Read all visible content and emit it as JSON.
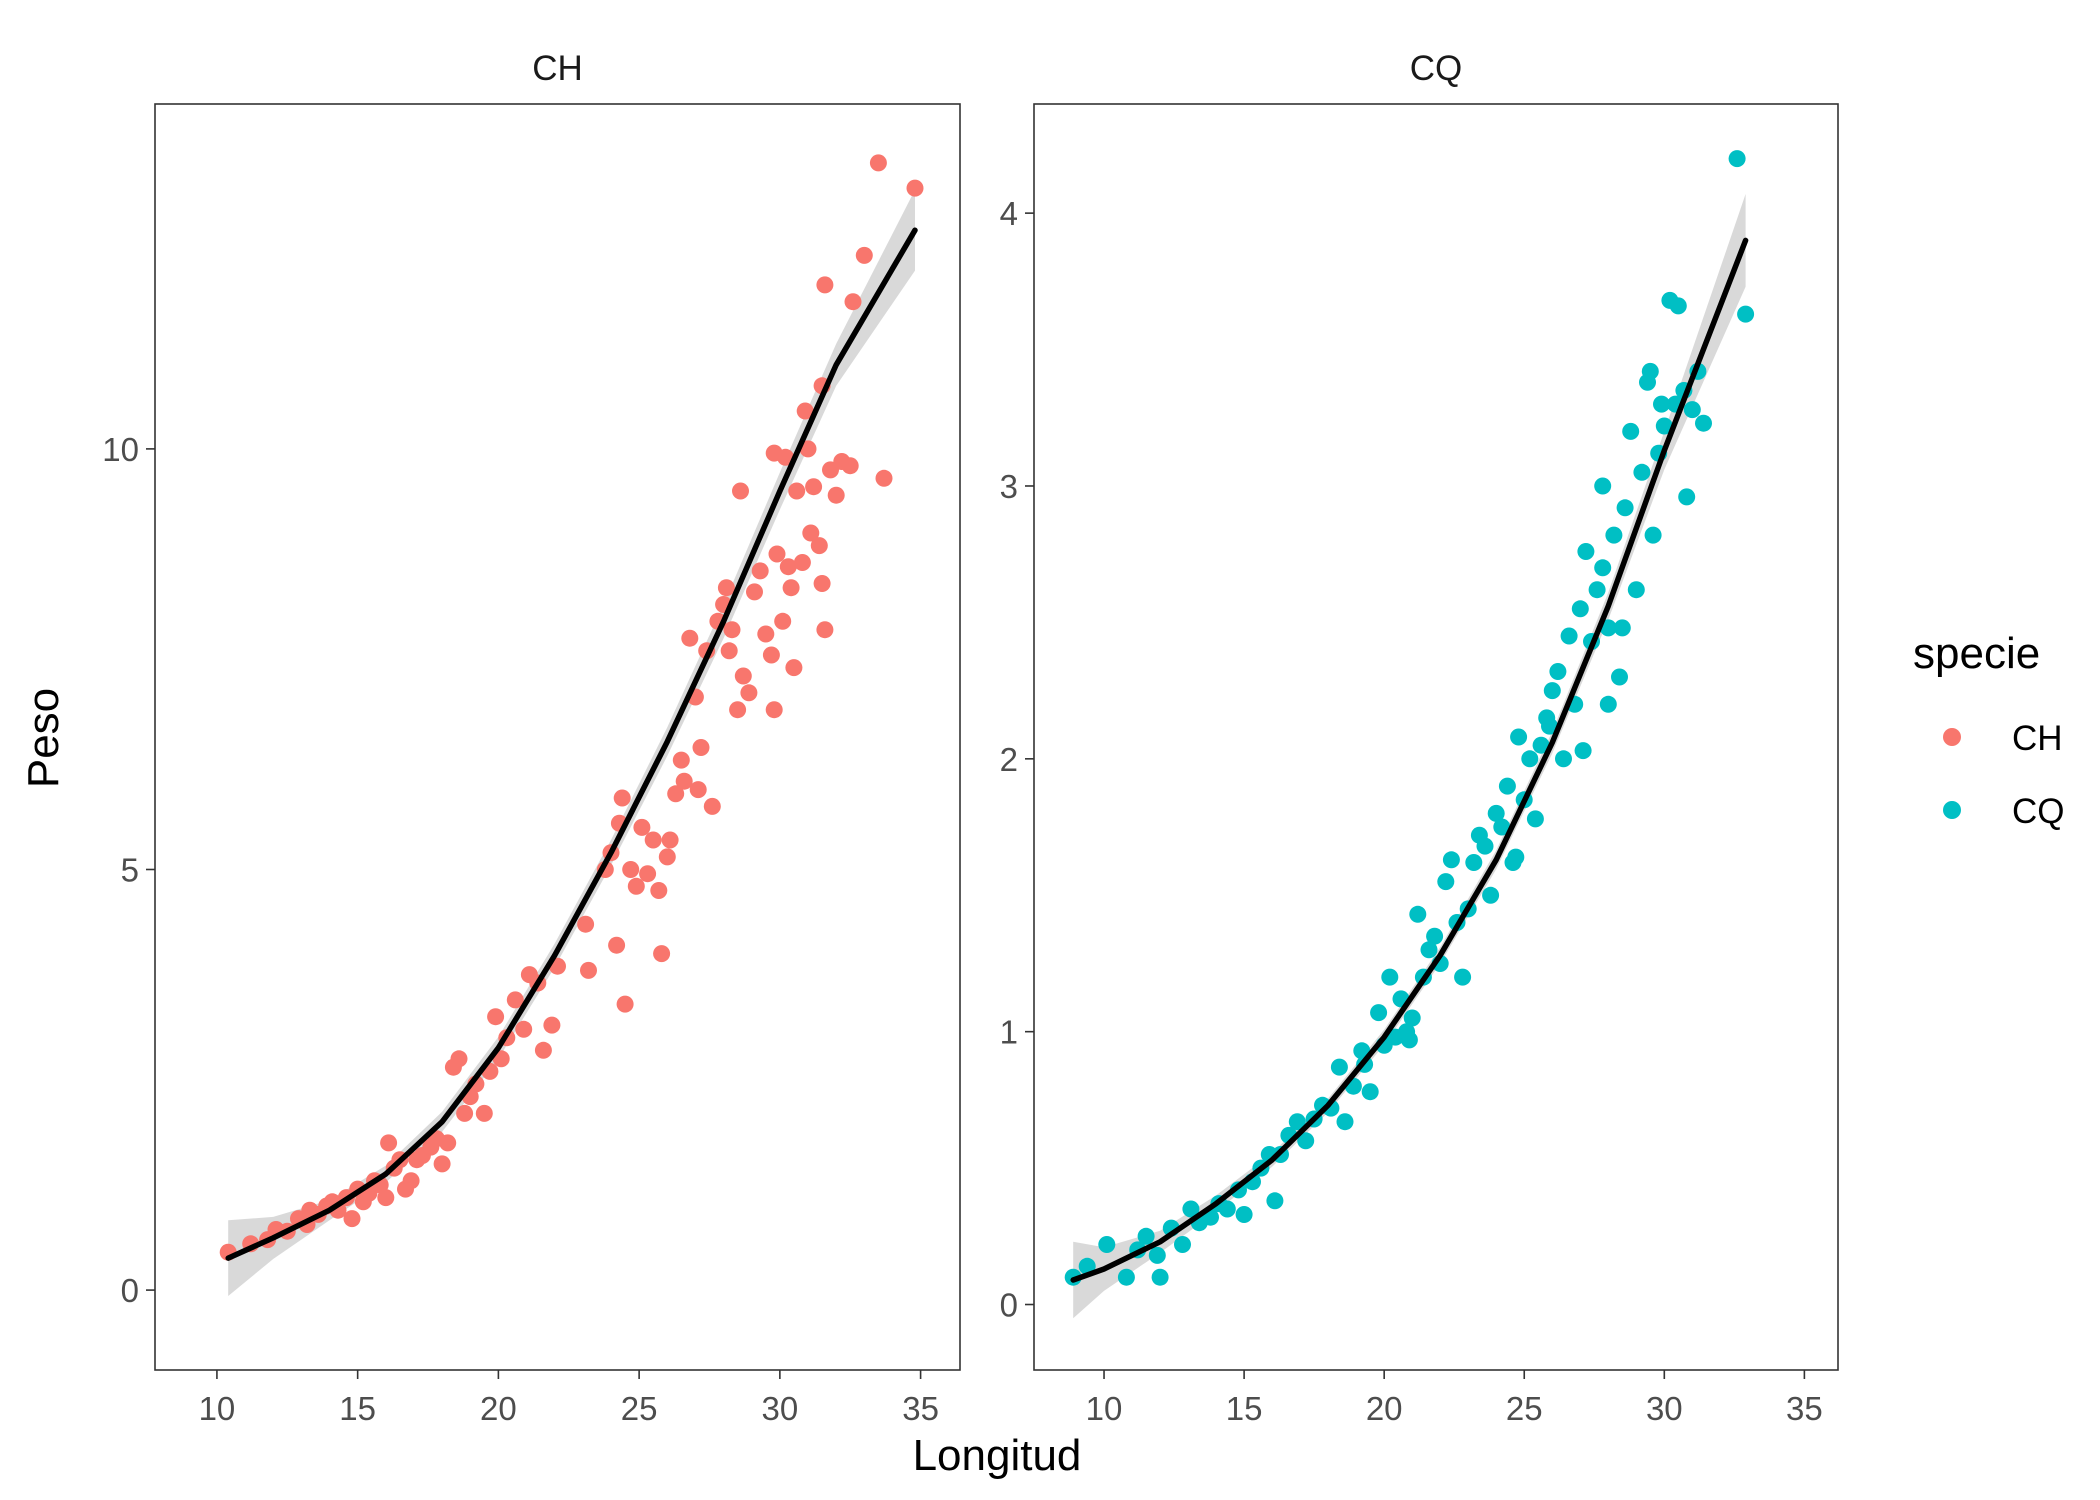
{
  "chart_data": {
    "type": "scatter",
    "xlabel": "Longitud",
    "ylabel": "Peso",
    "legend": {
      "title": "specie",
      "position": "right",
      "entries": [
        {
          "label": "CH",
          "color": "#F8766D"
        },
        {
          "label": "CQ",
          "color": "#00BFC4"
        }
      ]
    },
    "grid": false,
    "smooth_line_color": "#000000",
    "confidence_band_color": "#BFBFBF",
    "panels": [
      {
        "strip": "CH",
        "color": "#F8766D",
        "xlim": [
          7.8,
          36.4
        ],
        "ylim": [
          -0.95,
          14.1
        ],
        "xticks": [
          10,
          15,
          20,
          25,
          30,
          35
        ],
        "xtick_labels": [
          "10",
          "15",
          "20",
          "25",
          "30",
          "35"
        ],
        "yticks": [
          0,
          5,
          10
        ],
        "ytick_labels": [
          "0",
          "5",
          "10"
        ],
        "points": [
          [
            10.4,
            0.45
          ],
          [
            11.2,
            0.55
          ],
          [
            11.8,
            0.6
          ],
          [
            12.1,
            0.72
          ],
          [
            12.5,
            0.7
          ],
          [
            12.9,
            0.85
          ],
          [
            13.2,
            0.78
          ],
          [
            13.3,
            0.95
          ],
          [
            13.6,
            0.9
          ],
          [
            13.9,
            1.0
          ],
          [
            14.1,
            1.05
          ],
          [
            14.3,
            0.95
          ],
          [
            14.6,
            1.1
          ],
          [
            14.8,
            0.85
          ],
          [
            15.0,
            1.2
          ],
          [
            15.2,
            1.05
          ],
          [
            15.4,
            1.15
          ],
          [
            15.6,
            1.3
          ],
          [
            15.8,
            1.25
          ],
          [
            16.0,
            1.1
          ],
          [
            16.1,
            1.75
          ],
          [
            16.3,
            1.45
          ],
          [
            16.5,
            1.55
          ],
          [
            16.7,
            1.2
          ],
          [
            16.9,
            1.3
          ],
          [
            17.1,
            1.55
          ],
          [
            17.3,
            1.6
          ],
          [
            17.6,
            1.7
          ],
          [
            17.8,
            1.8
          ],
          [
            18.0,
            1.5
          ],
          [
            18.2,
            1.75
          ],
          [
            18.4,
            2.65
          ],
          [
            18.6,
            2.75
          ],
          [
            18.8,
            2.1
          ],
          [
            19.0,
            2.3
          ],
          [
            19.2,
            2.45
          ],
          [
            19.5,
            2.1
          ],
          [
            19.7,
            2.6
          ],
          [
            19.9,
            3.25
          ],
          [
            20.1,
            2.75
          ],
          [
            20.3,
            3.0
          ],
          [
            20.6,
            3.45
          ],
          [
            20.9,
            3.1
          ],
          [
            21.1,
            3.75
          ],
          [
            21.4,
            3.65
          ],
          [
            21.6,
            2.85
          ],
          [
            21.9,
            3.15
          ],
          [
            22.1,
            3.85
          ],
          [
            23.1,
            4.35
          ],
          [
            23.2,
            3.8
          ],
          [
            23.8,
            5.0
          ],
          [
            24.0,
            5.2
          ],
          [
            24.2,
            4.1
          ],
          [
            24.3,
            5.55
          ],
          [
            24.4,
            5.85
          ],
          [
            24.5,
            3.4
          ],
          [
            24.7,
            5.0
          ],
          [
            24.9,
            4.8
          ],
          [
            25.1,
            5.5
          ],
          [
            25.3,
            4.95
          ],
          [
            25.5,
            5.35
          ],
          [
            25.7,
            4.75
          ],
          [
            25.8,
            4.0
          ],
          [
            26.0,
            5.15
          ],
          [
            26.1,
            5.35
          ],
          [
            26.3,
            5.9
          ],
          [
            26.5,
            6.3
          ],
          [
            26.6,
            6.05
          ],
          [
            26.8,
            7.75
          ],
          [
            27.0,
            7.05
          ],
          [
            27.1,
            5.95
          ],
          [
            27.2,
            6.45
          ],
          [
            27.4,
            7.6
          ],
          [
            27.6,
            5.75
          ],
          [
            27.8,
            7.95
          ],
          [
            28.0,
            8.15
          ],
          [
            28.2,
            7.6
          ],
          [
            28.3,
            7.85
          ],
          [
            28.5,
            6.9
          ],
          [
            28.7,
            7.3
          ],
          [
            28.9,
            7.1
          ],
          [
            29.1,
            8.3
          ],
          [
            29.3,
            8.55
          ],
          [
            29.5,
            7.8
          ],
          [
            29.7,
            7.55
          ],
          [
            29.8,
            9.95
          ],
          [
            29.9,
            8.75
          ],
          [
            30.1,
            7.95
          ],
          [
            30.2,
            9.9
          ],
          [
            30.4,
            8.35
          ],
          [
            30.5,
            7.4
          ],
          [
            30.6,
            9.5
          ],
          [
            30.8,
            8.65
          ],
          [
            30.9,
            10.45
          ],
          [
            31.0,
            10.0
          ],
          [
            31.2,
            9.55
          ],
          [
            31.4,
            8.85
          ],
          [
            31.5,
            10.75
          ],
          [
            31.6,
            11.95
          ],
          [
            31.8,
            9.75
          ],
          [
            32.0,
            9.45
          ],
          [
            32.2,
            9.85
          ],
          [
            32.6,
            11.75
          ],
          [
            33.0,
            12.3
          ],
          [
            33.5,
            13.4
          ],
          [
            33.7,
            9.65
          ],
          [
            34.8,
            13.1
          ],
          [
            29.8,
            6.9
          ],
          [
            28.6,
            9.5
          ],
          [
            31.6,
            7.85
          ],
          [
            31.5,
            8.4
          ],
          [
            31.1,
            9.0
          ],
          [
            32.5,
            9.8
          ],
          [
            28.1,
            8.35
          ],
          [
            30.3,
            8.6
          ]
        ],
        "fit": [
          [
            10.4,
            0.38
          ],
          [
            12.0,
            0.62
          ],
          [
            14.0,
            0.95
          ],
          [
            16.0,
            1.38
          ],
          [
            18.0,
            2.0
          ],
          [
            20.0,
            2.88
          ],
          [
            22.0,
            3.98
          ],
          [
            24.0,
            5.2
          ],
          [
            26.0,
            6.52
          ],
          [
            28.0,
            7.95
          ],
          [
            30.0,
            9.5
          ],
          [
            32.0,
            11.0
          ],
          [
            34.8,
            12.6
          ]
        ],
        "band_half_width": [
          [
            10.4,
            0.45
          ],
          [
            12.0,
            0.25
          ],
          [
            14.0,
            0.12
          ],
          [
            16.0,
            0.1
          ],
          [
            18.0,
            0.12
          ],
          [
            20.0,
            0.13
          ],
          [
            22.0,
            0.14
          ],
          [
            24.0,
            0.15
          ],
          [
            26.0,
            0.17
          ],
          [
            28.0,
            0.2
          ],
          [
            30.0,
            0.22
          ],
          [
            32.0,
            0.25
          ],
          [
            34.8,
            0.48
          ]
        ]
      },
      {
        "strip": "CQ",
        "color": "#00BFC4",
        "xlim": [
          7.5,
          36.2
        ],
        "ylim": [
          -0.24,
          4.4
        ],
        "xticks": [
          10,
          15,
          20,
          25,
          30,
          35
        ],
        "xtick_labels": [
          "10",
          "15",
          "20",
          "25",
          "30",
          "35"
        ],
        "yticks": [
          0,
          1,
          2,
          3,
          4
        ],
        "ytick_labels": [
          "0",
          "1",
          "2",
          "3",
          "4"
        ],
        "points": [
          [
            8.9,
            0.1
          ],
          [
            9.4,
            0.14
          ],
          [
            10.1,
            0.22
          ],
          [
            10.8,
            0.1
          ],
          [
            11.2,
            0.2
          ],
          [
            11.5,
            0.25
          ],
          [
            11.9,
            0.18
          ],
          [
            12.0,
            0.1
          ],
          [
            12.4,
            0.28
          ],
          [
            12.8,
            0.22
          ],
          [
            13.1,
            0.35
          ],
          [
            13.4,
            0.3
          ],
          [
            13.8,
            0.32
          ],
          [
            14.1,
            0.37
          ],
          [
            14.4,
            0.35
          ],
          [
            14.8,
            0.42
          ],
          [
            15.0,
            0.33
          ],
          [
            15.3,
            0.45
          ],
          [
            15.6,
            0.5
          ],
          [
            15.9,
            0.55
          ],
          [
            16.1,
            0.38
          ],
          [
            16.3,
            0.55
          ],
          [
            16.6,
            0.62
          ],
          [
            16.9,
            0.67
          ],
          [
            17.2,
            0.6
          ],
          [
            17.5,
            0.68
          ],
          [
            17.8,
            0.73
          ],
          [
            18.1,
            0.72
          ],
          [
            18.4,
            0.87
          ],
          [
            18.6,
            0.67
          ],
          [
            18.9,
            0.8
          ],
          [
            19.2,
            0.93
          ],
          [
            19.5,
            0.78
          ],
          [
            19.8,
            1.07
          ],
          [
            20.0,
            0.95
          ],
          [
            20.2,
            1.2
          ],
          [
            20.4,
            0.98
          ],
          [
            20.6,
            1.12
          ],
          [
            20.8,
            1.0
          ],
          [
            21.0,
            1.05
          ],
          [
            21.2,
            1.43
          ],
          [
            21.4,
            1.2
          ],
          [
            21.6,
            1.3
          ],
          [
            21.8,
            1.35
          ],
          [
            22.0,
            1.25
          ],
          [
            22.2,
            1.55
          ],
          [
            22.4,
            1.63
          ],
          [
            22.6,
            1.4
          ],
          [
            22.8,
            1.2
          ],
          [
            23.0,
            1.45
          ],
          [
            23.2,
            1.62
          ],
          [
            23.4,
            1.72
          ],
          [
            23.6,
            1.68
          ],
          [
            23.8,
            1.5
          ],
          [
            24.0,
            1.8
          ],
          [
            24.2,
            1.75
          ],
          [
            24.4,
            1.9
          ],
          [
            24.6,
            1.62
          ],
          [
            24.8,
            2.08
          ],
          [
            25.0,
            1.85
          ],
          [
            25.2,
            2.0
          ],
          [
            25.4,
            1.78
          ],
          [
            25.6,
            2.05
          ],
          [
            25.8,
            2.15
          ],
          [
            26.0,
            2.25
          ],
          [
            26.2,
            2.32
          ],
          [
            26.4,
            2.0
          ],
          [
            26.6,
            2.45
          ],
          [
            26.8,
            2.2
          ],
          [
            27.0,
            2.55
          ],
          [
            27.1,
            2.03
          ],
          [
            27.2,
            2.76
          ],
          [
            27.4,
            2.43
          ],
          [
            27.6,
            2.62
          ],
          [
            27.8,
            2.7
          ],
          [
            28.0,
            2.48
          ],
          [
            28.2,
            2.82
          ],
          [
            28.4,
            2.3
          ],
          [
            28.6,
            2.92
          ],
          [
            28.8,
            3.2
          ],
          [
            29.0,
            2.62
          ],
          [
            29.2,
            3.05
          ],
          [
            29.4,
            3.38
          ],
          [
            29.6,
            2.82
          ],
          [
            29.8,
            3.12
          ],
          [
            30.0,
            3.22
          ],
          [
            30.2,
            3.68
          ],
          [
            30.4,
            3.3
          ],
          [
            30.5,
            3.66
          ],
          [
            30.7,
            3.35
          ],
          [
            30.8,
            2.96
          ],
          [
            31.0,
            3.28
          ],
          [
            31.2,
            3.42
          ],
          [
            31.4,
            3.23
          ],
          [
            32.6,
            4.2
          ],
          [
            32.9,
            3.63
          ],
          [
            29.5,
            3.42
          ],
          [
            28.5,
            2.48
          ],
          [
            27.8,
            3.0
          ],
          [
            29.9,
            3.3
          ],
          [
            20.9,
            0.97
          ],
          [
            19.3,
            0.88
          ],
          [
            24.7,
            1.64
          ],
          [
            25.9,
            2.12
          ],
          [
            28.0,
            2.2
          ]
        ],
        "fit": [
          [
            8.9,
            0.09
          ],
          [
            10.0,
            0.13
          ],
          [
            12.0,
            0.23
          ],
          [
            14.0,
            0.37
          ],
          [
            16.0,
            0.53
          ],
          [
            18.0,
            0.73
          ],
          [
            20.0,
            0.98
          ],
          [
            22.0,
            1.28
          ],
          [
            24.0,
            1.63
          ],
          [
            26.0,
            2.06
          ],
          [
            28.0,
            2.56
          ],
          [
            30.0,
            3.13
          ],
          [
            32.9,
            3.9
          ]
        ],
        "band_half_width": [
          [
            8.9,
            0.14
          ],
          [
            10.0,
            0.08
          ],
          [
            12.0,
            0.04
          ],
          [
            14.0,
            0.03
          ],
          [
            16.0,
            0.025
          ],
          [
            18.0,
            0.025
          ],
          [
            20.0,
            0.028
          ],
          [
            22.0,
            0.03
          ],
          [
            24.0,
            0.035
          ],
          [
            26.0,
            0.04
          ],
          [
            28.0,
            0.05
          ],
          [
            30.0,
            0.07
          ],
          [
            32.9,
            0.17
          ]
        ]
      }
    ]
  }
}
